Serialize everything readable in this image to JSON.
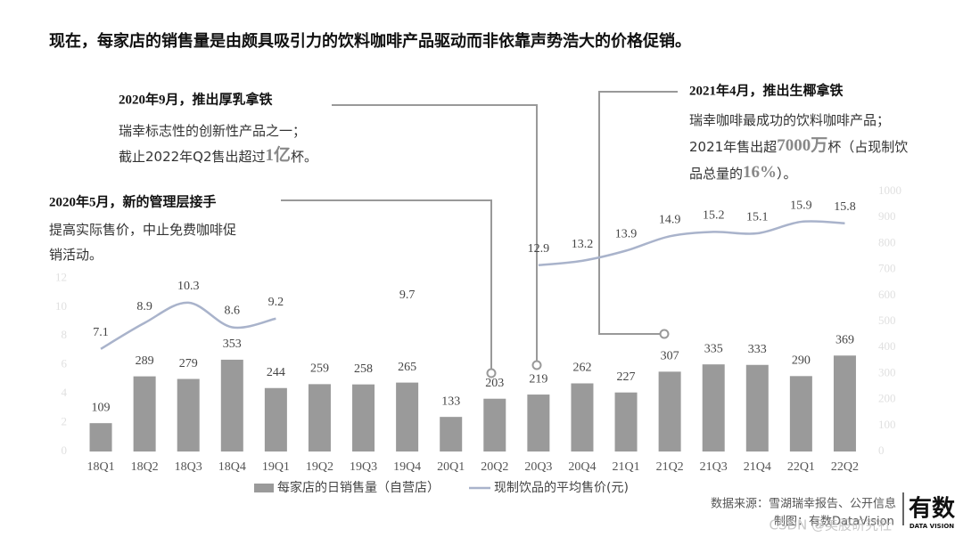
{
  "title": "现在，每家店的销售量是由颇具吸引力的饮料咖啡产品驱动而非依靠声势浩大的价格促销。",
  "chart_data": {
    "type": "combo",
    "categories": [
      "18Q1",
      "18Q2",
      "18Q3",
      "18Q4",
      "19Q1",
      "19Q2",
      "19Q3",
      "19Q4",
      "20Q1",
      "20Q2",
      "20Q3",
      "20Q4",
      "21Q1",
      "21Q2",
      "21Q3",
      "21Q4",
      "22Q1",
      "22Q2"
    ],
    "ylim": [
      0,
      18
    ],
    "yticks": [
      0,
      2,
      4,
      6,
      8,
      10,
      12
    ],
    "y2lim": [
      0,
      1000
    ],
    "y2ticks": [
      0,
      100,
      200,
      300,
      400,
      500,
      600,
      700,
      800,
      900,
      1000
    ],
    "series": [
      {
        "name": "每家店的日销售量（自营店）",
        "type": "bar",
        "axis": "y2",
        "color": "#9a9a9a",
        "values": [
          109,
          289,
          279,
          353,
          244,
          259,
          258,
          265,
          133,
          203,
          219,
          262,
          227,
          307,
          335,
          333,
          290,
          369
        ]
      },
      {
        "name": "现制饮品的平均售价(元)",
        "type": "line",
        "axis": "y",
        "color": "#a9b3cb",
        "values": [
          7.1,
          8.9,
          10.3,
          8.6,
          9.2,
          null,
          null,
          9.7,
          null,
          null,
          12.9,
          13.2,
          13.9,
          14.9,
          15.2,
          15.1,
          15.9,
          15.8
        ]
      }
    ]
  },
  "annotations": [
    {
      "title": "2020年9月，推出厚乳拿铁",
      "lines": [
        [
          {
            "text": "瑞幸标志性的创新性产品之一；"
          }
        ],
        [
          {
            "text": "截止2022年Q2售出超过"
          },
          {
            "text": "1亿",
            "em": true
          },
          {
            "text": "杯。"
          }
        ]
      ]
    },
    {
      "title": "2021年4月，推出生椰拿铁",
      "lines": [
        [
          {
            "text": "瑞幸咖啡最成功的饮料咖啡产品；"
          }
        ],
        [
          {
            "text": "2021年售出超"
          },
          {
            "text": "7000万",
            "em": true
          },
          {
            "text": "杯（占现制饮"
          }
        ],
        [
          {
            "text": "品总量的"
          },
          {
            "text": "16%",
            "em": true
          },
          {
            "text": "）。"
          }
        ]
      ]
    },
    {
      "title": "2020年5月，新的管理层接手",
      "lines": [
        [
          {
            "text": "提高实际售价，中止免费咖啡促"
          }
        ],
        [
          {
            "text": "销活动。"
          }
        ]
      ]
    }
  ],
  "source": [
    "数据来源：雪湖瑞幸报告、公开信息",
    "制图：有数DataVision"
  ],
  "logo": [
    "有数",
    "DATA VISION"
  ],
  "watermark": "CSDN @美股研究社"
}
